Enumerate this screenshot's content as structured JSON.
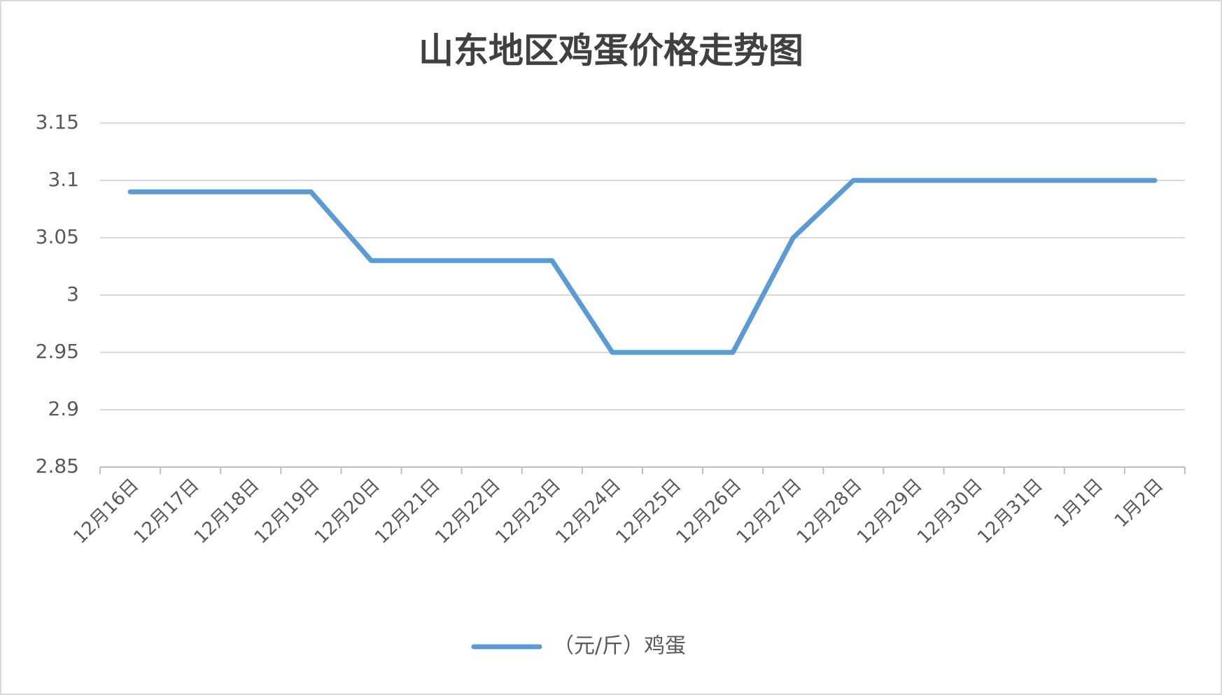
{
  "chart_data": {
    "type": "line",
    "title": "山东地区鸡蛋价格走势图",
    "categories": [
      "12月16日",
      "12月17日",
      "12月18日",
      "12月19日",
      "12月20日",
      "12月21日",
      "12月22日",
      "12月23日",
      "12月24日",
      "12月25日",
      "12月26日",
      "12月27日",
      "12月28日",
      "12月29日",
      "12月30日",
      "12月31日",
      "1月1日",
      "1月2日"
    ],
    "series": [
      {
        "name": "（元/斤）鸡蛋",
        "color": "#5b9bd5",
        "values": [
          3.09,
          3.09,
          3.09,
          3.09,
          3.03,
          3.03,
          3.03,
          3.03,
          2.95,
          2.95,
          2.95,
          3.05,
          3.1,
          3.1,
          3.1,
          3.1,
          3.1,
          3.1
        ]
      }
    ],
    "ylim": [
      2.85,
      3.15
    ],
    "yticks": [
      2.85,
      2.9,
      2.95,
      3,
      3.05,
      3.1,
      3.15
    ],
    "grid": true,
    "legend": "bottom"
  }
}
